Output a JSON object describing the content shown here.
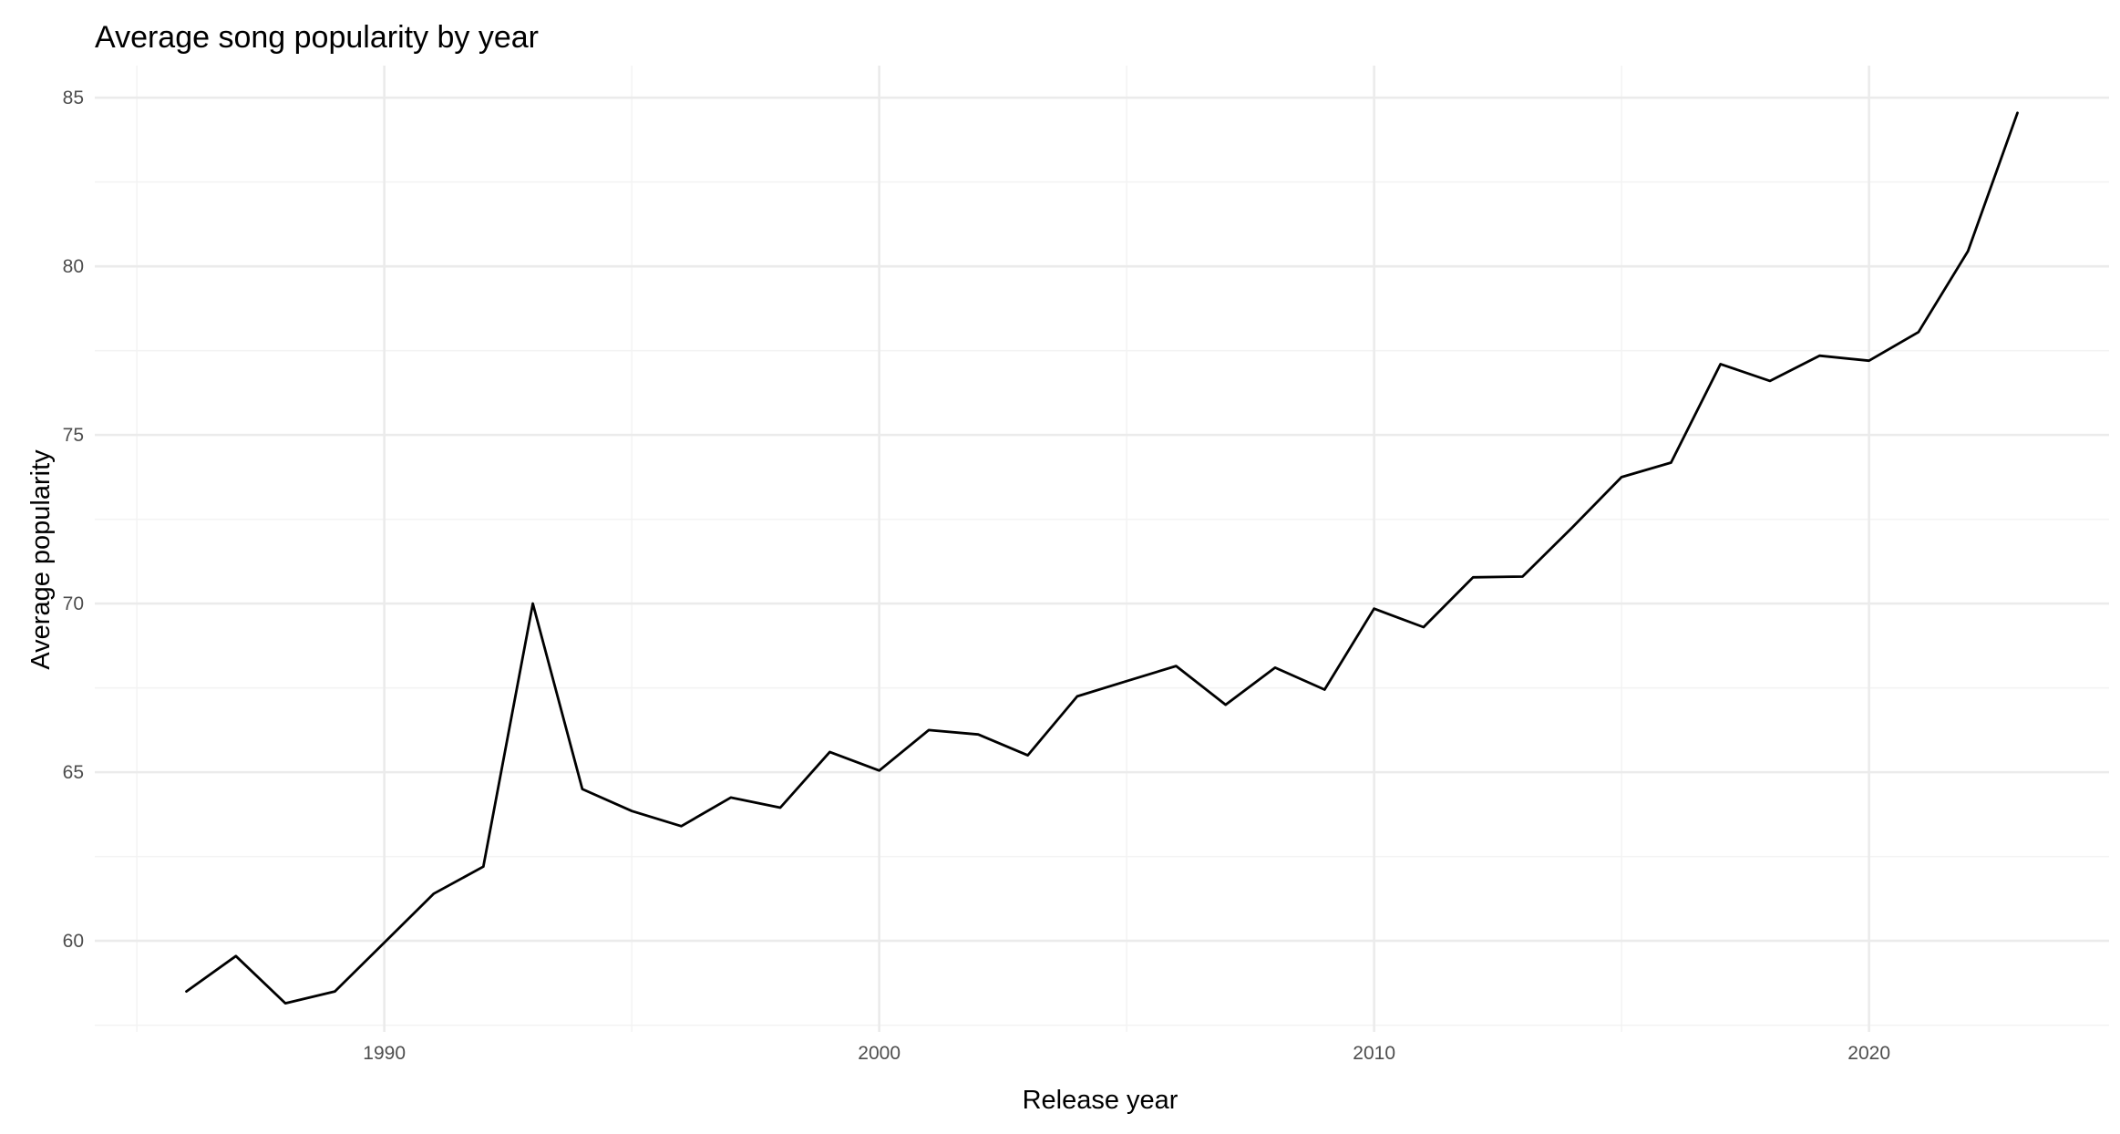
{
  "chart_data": {
    "type": "line",
    "title": "Average song popularity by year",
    "xlabel": "Release year",
    "ylabel": "Average popularity",
    "xlim": [
      1984.15,
      2024.85
    ],
    "ylim": [
      57.3,
      85.95
    ],
    "x_ticks": [
      1990,
      2000,
      2010,
      2020
    ],
    "y_ticks": [
      60,
      65,
      70,
      75,
      80,
      85
    ],
    "grid": true,
    "legend": "none",
    "line_color": "#000000",
    "series": [
      {
        "x": [
          1986,
          1987,
          1988,
          1989,
          1990,
          1991,
          1992,
          1993,
          1994,
          1995,
          1996,
          1997,
          1998,
          1999,
          2000,
          2001,
          2002,
          2003,
          2004,
          2005,
          2006,
          2007,
          2008,
          2009,
          2010,
          2011,
          2012,
          2013,
          2014,
          2015,
          2016,
          2017,
          2018,
          2019,
          2020,
          2021,
          2022,
          2023
        ],
        "values": [
          58.5,
          59.55,
          58.15,
          58.5,
          59.95,
          61.4,
          62.2,
          70.0,
          64.5,
          63.85,
          63.4,
          64.25,
          63.95,
          65.6,
          65.05,
          66.25,
          66.12,
          65.5,
          67.25,
          67.7,
          68.15,
          67.0,
          68.1,
          67.45,
          69.85,
          69.3,
          70.78,
          70.8,
          72.25,
          73.75,
          74.18,
          77.1,
          76.6,
          77.35,
          77.2,
          78.05,
          80.45,
          84.55
        ]
      }
    ]
  }
}
